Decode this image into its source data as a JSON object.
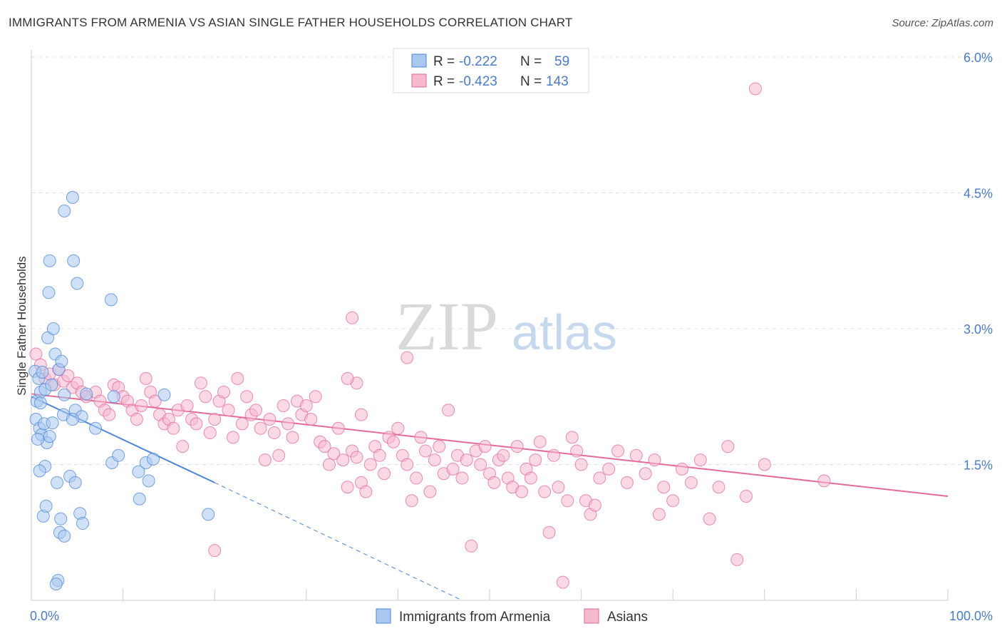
{
  "title": "IMMIGRANTS FROM ARMENIA VS ASIAN SINGLE FATHER HOUSEHOLDS CORRELATION CHART",
  "source": "Source: ZipAtlas.com",
  "watermark": {
    "zip": "ZIP",
    "atlas": "atlas"
  },
  "colors": {
    "blue": "#4a86d9",
    "blue_fill": "#a9c8f0",
    "pink": "#e46a9a",
    "pink_fill": "#f5b8cd",
    "tick": "#4a7cc6"
  },
  "legend": {
    "rows": [
      {
        "r_label": "R =",
        "r_value": "-0.222",
        "n_label": "N =",
        "n_value": "59"
      },
      {
        "r_label": "R =",
        "r_value": "-0.423",
        "n_label": "N =",
        "n_value": "143"
      }
    ]
  },
  "bottom_legend": [
    "Immigrants from Armenia",
    "Asians"
  ],
  "chart_data": {
    "type": "scatter",
    "title": "IMMIGRANTS FROM ARMENIA VS ASIAN SINGLE FATHER HOUSEHOLDS CORRELATION CHART",
    "xlabel": "",
    "ylabel": "Single Father Households",
    "xlim": [
      0,
      100
    ],
    "ylim": [
      0,
      6.2
    ],
    "x_tick_labels": [
      "0.0%",
      "100.0%"
    ],
    "y_ticks": [
      1.5,
      3.0,
      4.5,
      6.0
    ],
    "y_tick_labels": [
      "1.5%",
      "3.0%",
      "4.5%",
      "6.0%"
    ],
    "grid": true,
    "legend_position": "top-center",
    "series": [
      {
        "name": "Immigrants from Armenia",
        "color": "#4a86d9",
        "R": -0.222,
        "N": 59,
        "trend": {
          "x": [
            0,
            20
          ],
          "y": [
            2.25,
            1.3
          ],
          "dashed_to": [
            47,
            0.0
          ]
        },
        "points": [
          [
            0.4,
            2.53
          ],
          [
            0.6,
            2.2
          ],
          [
            0.8,
            2.45
          ],
          [
            0.5,
            2.0
          ],
          [
            1.0,
            2.3
          ],
          [
            1.2,
            2.52
          ],
          [
            1.5,
            2.33
          ],
          [
            0.9,
            1.9
          ],
          [
            1.1,
            1.83
          ],
          [
            1.4,
            1.95
          ],
          [
            1.7,
            1.74
          ],
          [
            2.0,
            1.81
          ],
          [
            2.3,
            1.96
          ],
          [
            2.6,
            2.72
          ],
          [
            3.0,
            2.55
          ],
          [
            3.3,
            2.64
          ],
          [
            3.6,
            2.27
          ],
          [
            1.8,
            2.9
          ],
          [
            2.4,
            3.0
          ],
          [
            1.9,
            3.4
          ],
          [
            2.0,
            3.75
          ],
          [
            3.6,
            4.3
          ],
          [
            4.6,
            3.75
          ],
          [
            4.8,
            2.1
          ],
          [
            5.0,
            3.5
          ],
          [
            4.5,
            4.45
          ],
          [
            3.5,
            2.05
          ],
          [
            2.8,
            1.3
          ],
          [
            1.5,
            1.48
          ],
          [
            0.9,
            1.43
          ],
          [
            1.3,
            0.93
          ],
          [
            1.6,
            1.04
          ],
          [
            3.2,
            0.9
          ],
          [
            3.1,
            0.75
          ],
          [
            3.6,
            0.71
          ],
          [
            4.2,
            1.37
          ],
          [
            4.8,
            1.3
          ],
          [
            5.3,
            0.96
          ],
          [
            5.6,
            0.85
          ],
          [
            2.9,
            0.22
          ],
          [
            2.7,
            0.18
          ],
          [
            5.5,
            2.03
          ],
          [
            6.0,
            2.28
          ],
          [
            7.0,
            1.9
          ],
          [
            9.0,
            2.25
          ],
          [
            8.7,
            3.32
          ],
          [
            8.8,
            1.52
          ],
          [
            9.5,
            1.6
          ],
          [
            11.7,
            1.42
          ],
          [
            11.8,
            1.12
          ],
          [
            12.5,
            1.52
          ],
          [
            12.8,
            1.32
          ],
          [
            13.3,
            1.56
          ],
          [
            14.5,
            2.27
          ],
          [
            19.3,
            0.95
          ],
          [
            1.0,
            2.18
          ],
          [
            0.7,
            1.78
          ],
          [
            4.5,
            2.0
          ],
          [
            2.2,
            2.38
          ]
        ]
      },
      {
        "name": "Asians",
        "color": "#e46a9a",
        "R": -0.423,
        "N": 143,
        "trend": {
          "x": [
            0,
            100
          ],
          "y": [
            2.28,
            1.15
          ]
        },
        "points": [
          [
            0.5,
            2.72
          ],
          [
            1.0,
            2.6
          ],
          [
            1.5,
            2.45
          ],
          [
            2.0,
            2.5
          ],
          [
            2.5,
            2.38
          ],
          [
            3.0,
            2.55
          ],
          [
            3.5,
            2.42
          ],
          [
            4.0,
            2.48
          ],
          [
            4.5,
            2.35
          ],
          [
            5.0,
            2.4
          ],
          [
            5.5,
            2.3
          ],
          [
            6.0,
            2.25
          ],
          [
            7.0,
            2.3
          ],
          [
            7.5,
            2.2
          ],
          [
            8.0,
            2.1
          ],
          [
            8.5,
            2.05
          ],
          [
            9.0,
            2.38
          ],
          [
            9.5,
            2.35
          ],
          [
            10.0,
            2.25
          ],
          [
            10.5,
            2.2
          ],
          [
            11.0,
            2.1
          ],
          [
            11.5,
            2.0
          ],
          [
            12.0,
            2.15
          ],
          [
            12.5,
            2.45
          ],
          [
            13.0,
            2.3
          ],
          [
            13.5,
            2.2
          ],
          [
            14.0,
            2.05
          ],
          [
            14.5,
            1.95
          ],
          [
            15.0,
            2.0
          ],
          [
            15.5,
            1.9
          ],
          [
            16.0,
            2.1
          ],
          [
            16.5,
            1.7
          ],
          [
            17.0,
            2.15
          ],
          [
            17.5,
            2.0
          ],
          [
            18.0,
            1.95
          ],
          [
            18.5,
            2.4
          ],
          [
            19.0,
            2.25
          ],
          [
            19.5,
            1.85
          ],
          [
            20.0,
            2.0
          ],
          [
            20.5,
            2.2
          ],
          [
            21.0,
            2.3
          ],
          [
            21.5,
            2.1
          ],
          [
            22.0,
            1.8
          ],
          [
            22.5,
            2.45
          ],
          [
            23.0,
            1.95
          ],
          [
            23.5,
            2.25
          ],
          [
            24.0,
            2.05
          ],
          [
            24.5,
            2.1
          ],
          [
            25.0,
            1.9
          ],
          [
            25.5,
            1.55
          ],
          [
            26.0,
            2.0
          ],
          [
            26.5,
            1.85
          ],
          [
            27.0,
            1.6
          ],
          [
            27.5,
            2.15
          ],
          [
            28.0,
            1.95
          ],
          [
            28.5,
            1.8
          ],
          [
            29.0,
            2.2
          ],
          [
            29.5,
            2.05
          ],
          [
            30.0,
            2.15
          ],
          [
            30.5,
            2.0
          ],
          [
            31.0,
            2.25
          ],
          [
            31.5,
            1.75
          ],
          [
            32.0,
            1.7
          ],
          [
            32.5,
            1.5
          ],
          [
            33.0,
            1.62
          ],
          [
            33.5,
            1.9
          ],
          [
            34.0,
            1.55
          ],
          [
            34.5,
            1.25
          ],
          [
            35.0,
            1.65
          ],
          [
            35.5,
            2.4
          ],
          [
            36.0,
            1.3
          ],
          [
            36.5,
            1.2
          ],
          [
            37.0,
            1.5
          ],
          [
            37.5,
            1.7
          ],
          [
            38.0,
            1.6
          ],
          [
            38.5,
            1.4
          ],
          [
            39.0,
            1.8
          ],
          [
            39.5,
            1.75
          ],
          [
            40.0,
            1.9
          ],
          [
            40.5,
            1.6
          ],
          [
            41.0,
            1.5
          ],
          [
            41.5,
            1.1
          ],
          [
            42.0,
            1.35
          ],
          [
            42.5,
            1.8
          ],
          [
            43.0,
            1.65
          ],
          [
            43.5,
            1.2
          ],
          [
            44.0,
            1.55
          ],
          [
            44.5,
            1.7
          ],
          [
            45.0,
            1.4
          ],
          [
            45.5,
            2.1
          ],
          [
            46.0,
            1.45
          ],
          [
            46.5,
            1.6
          ],
          [
            47.0,
            1.35
          ],
          [
            47.5,
            1.55
          ],
          [
            48.0,
            0.6
          ],
          [
            48.5,
            1.65
          ],
          [
            49.0,
            1.5
          ],
          [
            49.5,
            1.7
          ],
          [
            50.0,
            1.4
          ],
          [
            50.5,
            1.3
          ],
          [
            51.0,
            1.55
          ],
          [
            51.5,
            1.6
          ],
          [
            52.0,
            1.35
          ],
          [
            52.5,
            1.25
          ],
          [
            53.0,
            1.7
          ],
          [
            53.5,
            1.2
          ],
          [
            54.0,
            1.45
          ],
          [
            54.5,
            1.35
          ],
          [
            55.0,
            1.55
          ],
          [
            55.5,
            1.75
          ],
          [
            56.0,
            1.2
          ],
          [
            56.5,
            0.75
          ],
          [
            57.0,
            1.6
          ],
          [
            57.5,
            1.25
          ],
          [
            58.0,
            0.2
          ],
          [
            58.5,
            1.1
          ],
          [
            59.0,
            1.8
          ],
          [
            59.5,
            1.65
          ],
          [
            60.0,
            1.5
          ],
          [
            60.5,
            1.1
          ],
          [
            61.0,
            0.95
          ],
          [
            61.5,
            1.05
          ],
          [
            62.0,
            1.35
          ],
          [
            63.0,
            1.45
          ],
          [
            64.0,
            1.65
          ],
          [
            65.0,
            1.3
          ],
          [
            66.0,
            1.6
          ],
          [
            67.0,
            1.4
          ],
          [
            68.0,
            1.55
          ],
          [
            68.5,
            0.95
          ],
          [
            69.0,
            1.25
          ],
          [
            70.0,
            1.1
          ],
          [
            71.0,
            1.45
          ],
          [
            72.0,
            1.3
          ],
          [
            73.0,
            1.55
          ],
          [
            74.0,
            0.9
          ],
          [
            75.0,
            1.25
          ],
          [
            76.0,
            1.7
          ],
          [
            77.0,
            0.45
          ],
          [
            78.0,
            1.15
          ],
          [
            79.0,
            5.65
          ],
          [
            80.0,
            1.5
          ],
          [
            35.0,
            3.12
          ],
          [
            41.0,
            2.68
          ],
          [
            34.5,
            2.45
          ],
          [
            35.5,
            1.58
          ],
          [
            36.0,
            2.05
          ],
          [
            86.5,
            1.32
          ],
          [
            20.0,
            0.55
          ]
        ]
      }
    ]
  }
}
